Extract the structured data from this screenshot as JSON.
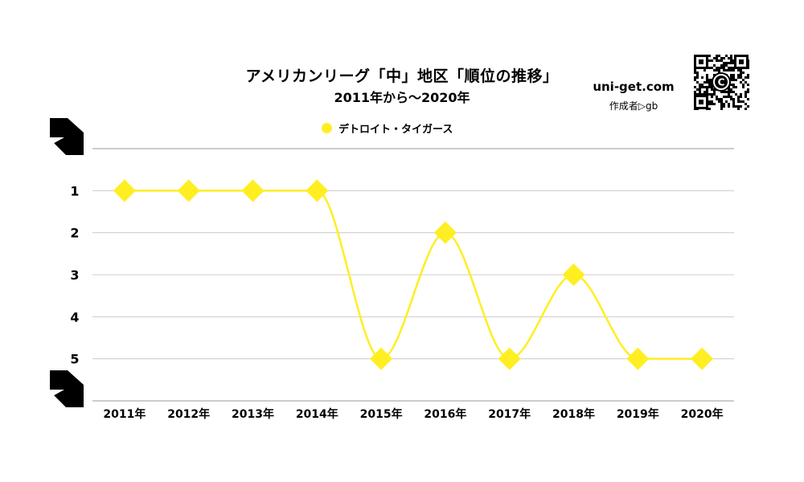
{
  "title": "アメリカンリーグ「中」地区「順位の推移」",
  "subtitle": "2011年から〜2020年",
  "site": "uni-get.com",
  "author": "作成者▷gb",
  "qr_badge_letter": "C",
  "colors": {
    "series": "#ffee22",
    "grid": "#cccccc",
    "axis": "#999999"
  },
  "chart_data": {
    "type": "line",
    "title": "アメリカンリーグ「中」地区「順位の推移」",
    "subtitle": "2011年から〜2020年",
    "x": [
      "2011年",
      "2012年",
      "2013年",
      "2014年",
      "2015年",
      "2016年",
      "2017年",
      "2018年",
      "2019年",
      "2020年"
    ],
    "y_ticks": [
      "1",
      "2",
      "3",
      "4",
      "5"
    ],
    "ylim": [
      0,
      6
    ],
    "y_inverted": true,
    "grid": true,
    "smooth": true,
    "marker": "diamond",
    "legend_position": "top-center",
    "series": [
      {
        "name": "デトロイト・タイガース",
        "values": [
          1,
          1,
          1,
          1,
          5,
          2,
          5,
          3,
          5,
          5
        ]
      }
    ]
  }
}
